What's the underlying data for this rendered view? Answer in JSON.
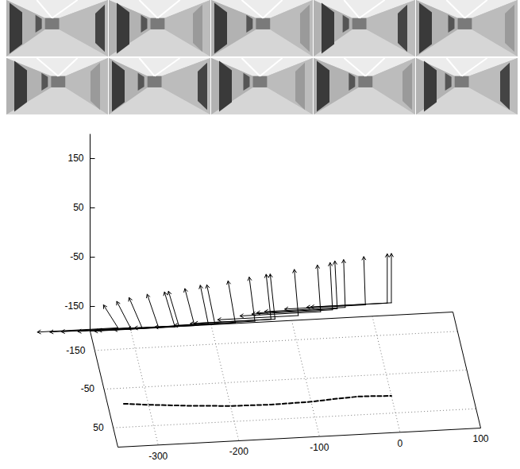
{
  "chart_data": {
    "type": "3d_trajectory",
    "xlim": [
      -350,
      100
    ],
    "ylim": [
      -200,
      100
    ],
    "zlim": [
      -200,
      200
    ],
    "xticks": [
      -300,
      -200,
      -100,
      0,
      100
    ],
    "yticks": [
      -150,
      -50,
      50
    ],
    "zticks": [
      -150,
      -50,
      50,
      150
    ],
    "grid": true,
    "trajectory": {
      "x": [
        -330,
        -300,
        -250,
        -200,
        -150,
        -100,
        -70,
        -40,
        -20,
        0
      ],
      "y": [
        -10,
        -4,
        4,
        10,
        12,
        10,
        6,
        3,
        4,
        6
      ],
      "line_style": "dashed",
      "color": "#000000"
    },
    "poses": {
      "x": [
        0,
        -5,
        -32,
        -57,
        -67,
        -73,
        -88,
        -116,
        -145,
        -150,
        -170,
        -194,
        -219,
        -227,
        -244,
        -263,
        -268,
        -288,
        -308,
        -322,
        -337
      ],
      "y": [
        6,
        5,
        4,
        4,
        5,
        6,
        8,
        11,
        12,
        12,
        12,
        10,
        7,
        6,
        5,
        2,
        2,
        -2,
        -6,
        -8,
        -12
      ],
      "z": [
        -11,
        -12,
        -14,
        -17,
        -18,
        -19,
        -20,
        -23,
        -27,
        -27,
        -29,
        -32,
        -34,
        -35,
        -37,
        -39,
        -40,
        -42,
        -44,
        -45,
        -47
      ],
      "forward": [
        -100,
        0,
        0
      ],
      "up": [
        [
          0,
          0,
          100
        ],
        [
          0,
          0,
          100
        ],
        [
          -2,
          0,
          98
        ],
        [
          -2,
          0,
          97
        ],
        [
          -3,
          0,
          97
        ],
        [
          -3,
          0,
          96
        ],
        [
          -4,
          0,
          95
        ],
        [
          -5,
          0,
          94
        ],
        [
          -6,
          0,
          92
        ],
        [
          -6,
          0,
          92
        ],
        [
          -7,
          0,
          90
        ],
        [
          -9,
          0,
          86
        ],
        [
          -10,
          0,
          80
        ],
        [
          -10,
          0,
          80
        ],
        [
          -12,
          0,
          76
        ],
        [
          -13,
          0,
          72
        ],
        [
          -13,
          0,
          72
        ],
        [
          -14,
          0,
          68
        ],
        [
          -16,
          0,
          62
        ],
        [
          -17,
          0,
          55
        ],
        [
          -18,
          0,
          48
        ]
      ],
      "color": "#000000"
    }
  }
}
